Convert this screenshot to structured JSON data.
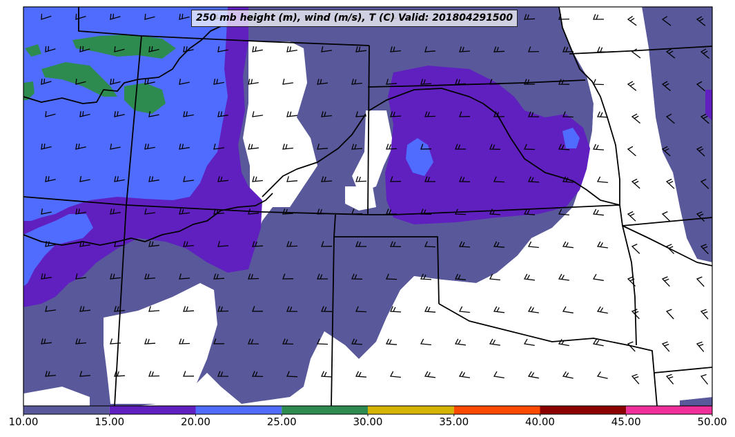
{
  "title": "250 mb height (m), wind (m/s), T (C) Valid: 201804291500",
  "colorbar": {
    "ticks": [
      "10.00",
      "15.00",
      "20.00",
      "25.00",
      "30.00",
      "35.00",
      "40.00",
      "45.00",
      "50.00"
    ],
    "bins": [
      {
        "from": 10,
        "to": 15,
        "color": "#58589a"
      },
      {
        "from": 15,
        "to": 20,
        "color": "#6020c0"
      },
      {
        "from": 20,
        "to": 25,
        "color": "#4f6cff"
      },
      {
        "from": 25,
        "to": 30,
        "color": "#2e8b50"
      },
      {
        "from": 30,
        "to": 35,
        "color": "#d4b400"
      },
      {
        "from": 35,
        "to": 40,
        "color": "#ff4a00"
      },
      {
        "from": 40,
        "to": 45,
        "color": "#8b0000"
      },
      {
        "from": 45,
        "to": 50,
        "color": "#f0309a"
      }
    ]
  },
  "map": {
    "variable": "wind speed (m/s)",
    "background_color": "#ffffff",
    "border_color": "#000000",
    "barb_color": "#000000"
  }
}
